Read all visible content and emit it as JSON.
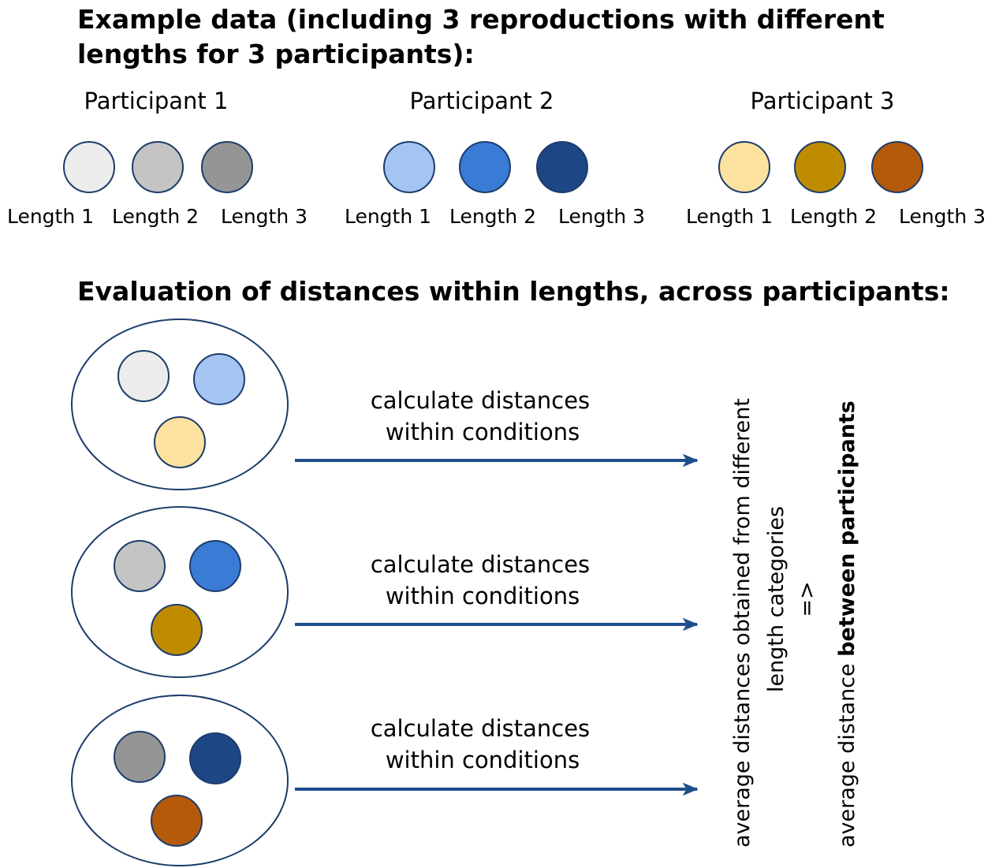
{
  "titles": {
    "example_line1": "Example data (including 3 reproductions with different",
    "example_line2": "lengths for 3 participants):",
    "evaluation": "Evaluation of distances within lengths, across participants:"
  },
  "participants": [
    {
      "label": "Participant 1",
      "lengths": [
        {
          "label": "Length 1",
          "color": "#ececec"
        },
        {
          "label": "Length 2",
          "color": "#c4c4c4"
        },
        {
          "label": "Length 3",
          "color": "#959595"
        }
      ]
    },
    {
      "label": "Participant 2",
      "lengths": [
        {
          "label": "Length 1",
          "color": "#a4c4f2"
        },
        {
          "label": "Length 2",
          "color": "#3a7bd5"
        },
        {
          "label": "Length 3",
          "color": "#1d4784"
        }
      ]
    },
    {
      "label": "Participant 3",
      "lengths": [
        {
          "label": "Length 1",
          "color": "#fde29f"
        },
        {
          "label": "Length 2",
          "color": "#bf8c00"
        },
        {
          "label": "Length 3",
          "color": "#b55a0a"
        }
      ]
    }
  ],
  "evaluation_groups": [
    {
      "circles": [
        "#ececec",
        "#a4c4f2",
        "#fde29f"
      ],
      "arrow_label_line1": "calculate distances",
      "arrow_label_line2": "within conditions"
    },
    {
      "circles": [
        "#c4c4c4",
        "#3a7bd5",
        "#bf8c00"
      ],
      "arrow_label_line1": "calculate distances",
      "arrow_label_line2": "within conditions"
    },
    {
      "circles": [
        "#959595",
        "#1d4784",
        "#b55a0a"
      ],
      "arrow_label_line1": "calculate distances",
      "arrow_label_line2": "within conditions"
    }
  ],
  "conclusion": {
    "line1": "average distances obtained from different",
    "line2": "length categories",
    "line3": "=>",
    "line4_prefix": "average distance ",
    "line4_bold": "between participants"
  },
  "colors": {
    "arrow": "#1f4e8c",
    "outline": "#1d3d6b"
  }
}
